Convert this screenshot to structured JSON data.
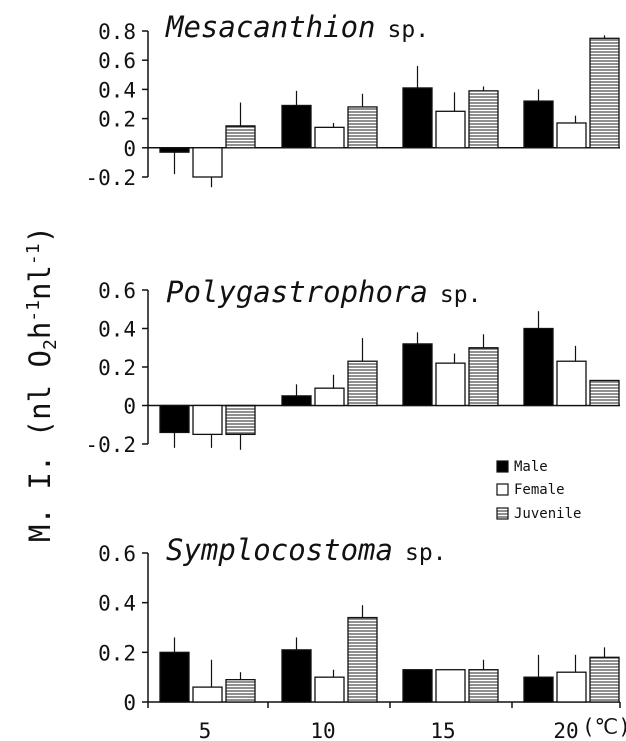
{
  "chart_data": {
    "type": "bar",
    "ylabel": {
      "prefix": "M. I. (nl O",
      "sub": "2",
      "mid1": "h",
      "sup1": "-1",
      "mid2": "nl",
      "sup2": "-1",
      "suffix": ")"
    },
    "categories": [
      "5",
      "10",
      "15",
      "20"
    ],
    "x_unit": "(℃)",
    "legend": [
      {
        "label": "Male",
        "fill": "#000000",
        "pattern": false
      },
      {
        "label": "Female",
        "fill": "#ffffff",
        "pattern": false
      },
      {
        "label": "Juvenile",
        "fill": "#ffffff",
        "pattern": true
      }
    ],
    "panels": [
      {
        "title": "Mesacanthion",
        "title_suffix": "sp.",
        "ylim": [
          -0.2,
          0.8
        ],
        "yticks": [
          "0.8",
          "0.6",
          "0.4",
          "0.2",
          "0",
          "-0.2"
        ],
        "series": [
          {
            "name": "Male",
            "values": [
              -0.03,
              0.29,
              0.41,
              0.32
            ],
            "errors": [
              0.15,
              0.1,
              0.15,
              0.08
            ]
          },
          {
            "name": "Female",
            "values": [
              -0.2,
              0.14,
              0.25,
              0.17
            ],
            "errors": [
              0.07,
              0.03,
              0.13,
              0.05
            ]
          },
          {
            "name": "Juvenile",
            "values": [
              0.15,
              0.28,
              0.39,
              0.75
            ],
            "errors": [
              0.16,
              0.09,
              0.03,
              0.02
            ]
          }
        ]
      },
      {
        "title": "Polygastrophora",
        "title_suffix": "sp.",
        "ylim": [
          -0.2,
          0.6
        ],
        "yticks": [
          "0.6",
          "0.4",
          "0.2",
          "0",
          "-0.2"
        ],
        "series": [
          {
            "name": "Male",
            "values": [
              -0.14,
              0.05,
              0.32,
              0.4
            ],
            "errors": [
              0.08,
              0.06,
              0.06,
              0.09
            ]
          },
          {
            "name": "Female",
            "values": [
              -0.15,
              0.09,
              0.22,
              0.23
            ],
            "errors": [
              0.07,
              0.07,
              0.05,
              0.08
            ]
          },
          {
            "name": "Juvenile",
            "values": [
              -0.15,
              0.23,
              0.3,
              0.13
            ],
            "errors": [
              0.08,
              0.12,
              0.07,
              0.0
            ]
          }
        ]
      },
      {
        "title": "Symplocostoma",
        "title_suffix": "sp.",
        "ylim": [
          0,
          0.6
        ],
        "yticks": [
          "0.6",
          "0.4",
          "0.2",
          "0"
        ],
        "series": [
          {
            "name": "Male",
            "values": [
              0.2,
              0.21,
              0.13,
              0.1
            ],
            "errors": [
              0.06,
              0.05,
              0.0,
              0.09
            ]
          },
          {
            "name": "Female",
            "values": [
              0.06,
              0.1,
              0.13,
              0.12
            ],
            "errors": [
              0.11,
              0.03,
              0.0,
              0.07
            ]
          },
          {
            "name": "Juvenile",
            "values": [
              0.09,
              0.34,
              0.13,
              0.18
            ],
            "errors": [
              0.03,
              0.05,
              0.04,
              0.04
            ]
          }
        ]
      }
    ]
  }
}
